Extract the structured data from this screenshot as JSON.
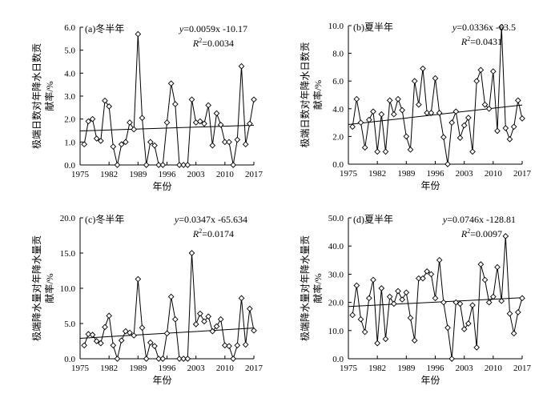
{
  "chart_data": [
    {
      "type": "line",
      "panel_label": "(a)冬半年",
      "equation": {
        "var": "y",
        "rest": "=0.0059x -10.17"
      },
      "r2": {
        "var": "R",
        "sup": "2",
        "rest": "=0.0034"
      },
      "ylabel_lines": [
        "极端日数对年降水日数贡",
        "献率/%"
      ],
      "xlabel": "年份",
      "xlim": [
        1975,
        2017
      ],
      "ylim": [
        0,
        6
      ],
      "xticks": [
        1975,
        1982,
        1989,
        1996,
        2003,
        2010,
        2017
      ],
      "yticks": [
        "0.0",
        "1.0",
        "2.0",
        "3.0",
        "4.0",
        "5.0",
        "6.0"
      ],
      "trend": {
        "slope": 0.0059,
        "intercept": -10.17
      },
      "x": [
        1976,
        1977,
        1978,
        1979,
        1980,
        1981,
        1982,
        1983,
        1984,
        1985,
        1986,
        1987,
        1988,
        1989,
        1990,
        1991,
        1992,
        1993,
        1994,
        1995,
        1996,
        1997,
        1998,
        1999,
        2000,
        2001,
        2002,
        2003,
        2004,
        2005,
        2006,
        2007,
        2008,
        2009,
        2010,
        2011,
        2012,
        2013,
        2014,
        2015,
        2016,
        2017
      ],
      "y": [
        0.9,
        1.9,
        2.0,
        1.15,
        1.05,
        2.8,
        2.55,
        0.8,
        0.0,
        0.9,
        1.0,
        1.85,
        1.55,
        5.7,
        2.05,
        0.0,
        1.0,
        0.85,
        0.0,
        0.0,
        1.85,
        3.55,
        2.65,
        0.0,
        0.0,
        0.0,
        2.85,
        1.85,
        1.9,
        1.8,
        2.6,
        0.85,
        2.25,
        1.75,
        1.0,
        1.0,
        0.0,
        1.1,
        4.3,
        0.9,
        1.8,
        2.85
      ]
    },
    {
      "type": "line",
      "panel_label": "(b)夏半年",
      "equation": {
        "var": "y",
        "rest": "=0.0336x -63.5"
      },
      "r2": {
        "var": "R",
        "sup": "2",
        "rest": "=0.0431"
      },
      "ylabel_lines": [
        "极端日数对年降水日数贡",
        "献率/%"
      ],
      "xlabel": "年份",
      "xlim": [
        1975,
        2017
      ],
      "ylim": [
        0,
        10
      ],
      "xticks": [
        1975,
        1982,
        1989,
        1996,
        2003,
        2010,
        2017
      ],
      "yticks": [
        "0.0",
        "2.0",
        "4.0",
        "6.0",
        "8.0",
        "10.0"
      ],
      "trend": {
        "slope": 0.0336,
        "intercept": -63.5
      },
      "x": [
        1976,
        1977,
        1978,
        1979,
        1980,
        1981,
        1982,
        1983,
        1984,
        1985,
        1986,
        1987,
        1988,
        1989,
        1990,
        1991,
        1992,
        1993,
        1994,
        1995,
        1996,
        1997,
        1998,
        1999,
        2000,
        2001,
        2002,
        2003,
        2004,
        2005,
        2006,
        2007,
        2008,
        2009,
        2010,
        2011,
        2012,
        2013,
        2014,
        2015,
        2016,
        2017
      ],
      "y": [
        2.7,
        4.7,
        3.0,
        1.2,
        3.2,
        3.8,
        0.9,
        3.6,
        0.9,
        4.6,
        3.6,
        4.7,
        3.9,
        2.0,
        1.05,
        6.0,
        4.3,
        6.9,
        3.7,
        3.7,
        6.2,
        3.7,
        1.95,
        0.0,
        3.0,
        3.8,
        1.9,
        2.8,
        3.35,
        0.9,
        6.0,
        6.8,
        4.3,
        4.0,
        6.7,
        2.4,
        9.9,
        2.6,
        1.8,
        2.7,
        4.6,
        3.3
      ]
    },
    {
      "type": "line",
      "panel_label": "(c)冬半年",
      "equation": {
        "var": "y",
        "rest": "=0.0347x -65.634"
      },
      "r2": {
        "var": "R",
        "sup": "2",
        "rest": "=0.0174"
      },
      "ylabel_lines": [
        "极端降水量对年降水量贡",
        "献率/%"
      ],
      "xlabel": "年份",
      "xlim": [
        1975,
        2017
      ],
      "ylim": [
        0,
        20
      ],
      "xticks": [
        1975,
        1982,
        1989,
        1996,
        2003,
        2010,
        2017
      ],
      "yticks": [
        "0.0",
        "5.0",
        "10.0",
        "15.0",
        "20.0"
      ],
      "trend": {
        "slope": 0.0347,
        "intercept": -65.634
      },
      "x": [
        1976,
        1977,
        1978,
        1979,
        1980,
        1981,
        1982,
        1983,
        1984,
        1985,
        1986,
        1987,
        1988,
        1989,
        1990,
        1991,
        1992,
        1993,
        1994,
        1995,
        1996,
        1997,
        1998,
        1999,
        2000,
        2001,
        2002,
        2003,
        2004,
        2005,
        2006,
        2007,
        2008,
        2009,
        2010,
        2011,
        2012,
        2013,
        2014,
        2015,
        2016,
        2017
      ],
      "y": [
        1.9,
        3.5,
        3.4,
        2.5,
        2.2,
        4.5,
        6.1,
        1.9,
        0.0,
        2.6,
        3.9,
        3.7,
        3.3,
        11.3,
        4.4,
        0.0,
        2.3,
        1.8,
        0.0,
        0.0,
        3.6,
        8.8,
        5.6,
        0.0,
        0.0,
        0.0,
        15.0,
        4.9,
        6.4,
        5.3,
        6.0,
        3.9,
        4.6,
        5.6,
        1.9,
        1.8,
        0.0,
        1.9,
        8.6,
        2.0,
        7.1,
        4.0
      ]
    },
    {
      "type": "line",
      "panel_label": "(d)夏半年",
      "equation": {
        "var": "y",
        "rest": "=0.0746x -128.81"
      },
      "r2": {
        "var": "R",
        "sup": "2",
        "rest": "=0.0097"
      },
      "ylabel_lines": [
        "极端降水量对年降水量贡",
        "献率/%"
      ],
      "xlabel": "年份",
      "xlim": [
        1975,
        2017
      ],
      "ylim": [
        0,
        50
      ],
      "xticks": [
        1975,
        1982,
        1989,
        1996,
        2003,
        2010,
        2017
      ],
      "yticks": [
        "0.0",
        "10.0",
        "20.0",
        "30.0",
        "40.0",
        "50.0"
      ],
      "trend": {
        "slope": 0.0746,
        "intercept": -128.81
      },
      "x": [
        1976,
        1977,
        1978,
        1979,
        1980,
        1981,
        1982,
        1983,
        1984,
        1985,
        1986,
        1987,
        1988,
        1989,
        1990,
        1991,
        1992,
        1993,
        1994,
        1995,
        1996,
        1997,
        1998,
        1999,
        2000,
        2001,
        2002,
        2003,
        2004,
        2005,
        2006,
        2007,
        2008,
        2009,
        2010,
        2011,
        2012,
        2013,
        2014,
        2015,
        2016,
        2017
      ],
      "y": [
        15.5,
        26.0,
        14.0,
        9.5,
        21.5,
        28.0,
        5.5,
        25.0,
        7.0,
        22.0,
        19.5,
        24.0,
        21.0,
        23.5,
        14.5,
        6.5,
        28.5,
        28.5,
        31.0,
        30.0,
        21.5,
        35.0,
        20.0,
        11.0,
        0.0,
        20.0,
        19.5,
        10.5,
        12.5,
        19.0,
        4.0,
        33.5,
        28.0,
        20.0,
        22.0,
        32.5,
        20.5,
        43.5,
        16.0,
        9.0,
        16.5,
        21.5
      ]
    }
  ]
}
